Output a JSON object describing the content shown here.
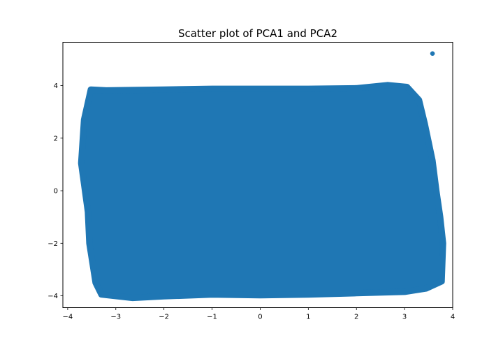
{
  "chart_data": {
    "type": "scatter",
    "title": "Scatter plot of PCA1 and PCA2",
    "xlabel": "",
    "ylabel": "",
    "xlim": [
      -4.1,
      4.0
    ],
    "ylim": [
      -4.45,
      5.65
    ],
    "x_ticks": [
      -4,
      -3,
      -2,
      -1,
      0,
      1,
      2,
      3,
      4
    ],
    "y_ticks": [
      -4,
      -2,
      0,
      2,
      4
    ],
    "grid": false,
    "legend": "none",
    "marker_color": "#1f77b4",
    "cloud": {
      "outline": [
        [
          -3.72,
          1.05
        ],
        [
          -3.66,
          2.7
        ],
        [
          -3.52,
          3.85
        ],
        [
          -3.2,
          3.82
        ],
        [
          -2.0,
          3.85
        ],
        [
          -1.0,
          3.88
        ],
        [
          0.0,
          3.88
        ],
        [
          1.0,
          3.88
        ],
        [
          2.0,
          3.9
        ],
        [
          2.65,
          4.02
        ],
        [
          3.05,
          3.95
        ],
        [
          3.3,
          3.45
        ],
        [
          3.42,
          2.55
        ],
        [
          3.58,
          1.15
        ],
        [
          3.66,
          0.0
        ],
        [
          3.74,
          -1.0
        ],
        [
          3.8,
          -2.0
        ],
        [
          3.77,
          -3.45
        ],
        [
          3.45,
          -3.72
        ],
        [
          3.0,
          -3.85
        ],
        [
          2.0,
          -3.9
        ],
        [
          1.0,
          -3.95
        ],
        [
          0.0,
          -3.98
        ],
        [
          -1.0,
          -3.95
        ],
        [
          -2.0,
          -4.02
        ],
        [
          -2.65,
          -4.08
        ],
        [
          -3.3,
          -3.95
        ],
        [
          -3.42,
          -3.5
        ],
        [
          -3.55,
          -2.0
        ],
        [
          -3.58,
          -0.8
        ]
      ]
    },
    "outliers": [
      {
        "x": 3.58,
        "y": 5.22
      }
    ]
  }
}
